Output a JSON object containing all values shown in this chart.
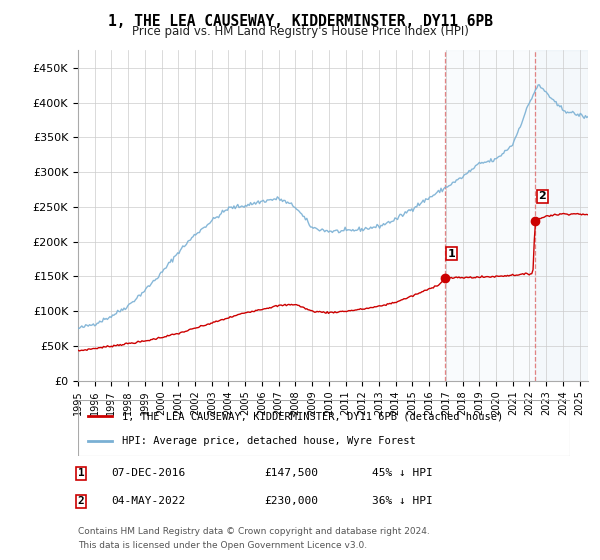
{
  "title": "1, THE LEA CAUSEWAY, KIDDERMINSTER, DY11 6PB",
  "subtitle": "Price paid vs. HM Land Registry's House Price Index (HPI)",
  "legend_line1": "1, THE LEA CAUSEWAY, KIDDERMINSTER, DY11 6PB (detached house)",
  "legend_line2": "HPI: Average price, detached house, Wyre Forest",
  "footnote1": "Contains HM Land Registry data © Crown copyright and database right 2024.",
  "footnote2": "This data is licensed under the Open Government Licence v3.0.",
  "sale1_label": "1",
  "sale1_date": "07-DEC-2016",
  "sale1_price": "£147,500",
  "sale1_note": "45% ↓ HPI",
  "sale2_label": "2",
  "sale2_date": "04-MAY-2022",
  "sale2_price": "£230,000",
  "sale2_note": "36% ↓ HPI",
  "price_color": "#cc0000",
  "hpi_color": "#7ab0d4",
  "sale1_x": 2016.92,
  "sale1_y": 147500,
  "sale2_x": 2022.34,
  "sale2_y": 230000,
  "vline1_x": 2016.92,
  "vline2_x": 2022.34,
  "xlim_left": 1995.0,
  "xlim_right": 2025.5,
  "ylim_bottom": 0,
  "ylim_top": 475000,
  "yticks": [
    0,
    50000,
    100000,
    150000,
    200000,
    250000,
    300000,
    350000,
    400000,
    450000
  ],
  "ytick_labels": [
    "£0",
    "£50K",
    "£100K",
    "£150K",
    "£200K",
    "£250K",
    "£300K",
    "£350K",
    "£400K",
    "£450K"
  ],
  "xtick_years": [
    1995,
    1996,
    1997,
    1998,
    1999,
    2000,
    2001,
    2002,
    2003,
    2004,
    2005,
    2006,
    2007,
    2008,
    2009,
    2010,
    2011,
    2012,
    2013,
    2014,
    2015,
    2016,
    2017,
    2018,
    2019,
    2020,
    2021,
    2022,
    2023,
    2024,
    2025
  ]
}
